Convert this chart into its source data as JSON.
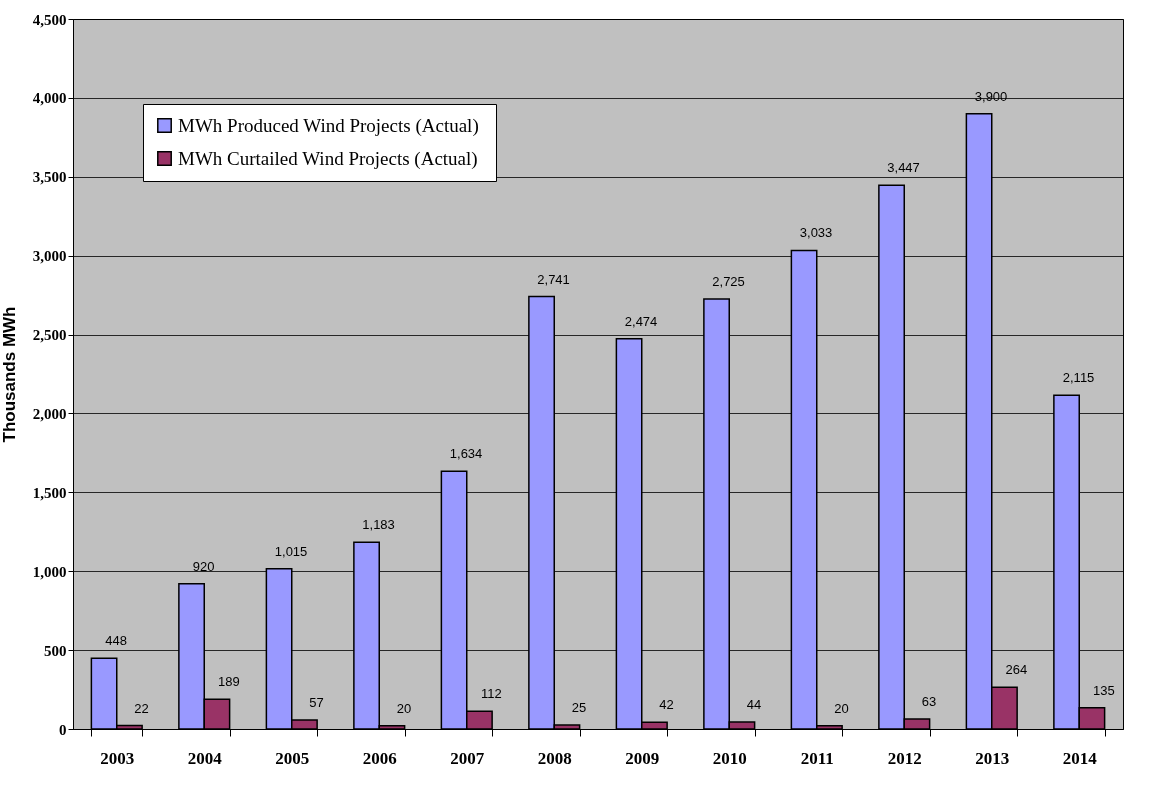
{
  "chart_data": {
    "type": "bar",
    "ylabel": "Thousands  MWh",
    "categories": [
      "2003",
      "2004",
      "2005",
      "2006",
      "2007",
      "2008",
      "2009",
      "2010",
      "2011",
      "2012",
      "2013",
      "2014"
    ],
    "series": [
      {
        "name": "MWh Produced  Wind Projects (Actual)",
        "color": "#9999ff",
        "values": [
          448,
          920,
          1015,
          1183,
          1634,
          2741,
          2474,
          2725,
          3033,
          3447,
          3900,
          2115
        ],
        "value_labels": [
          "448",
          "920",
          "1,015",
          "1,183",
          "1,634",
          "2,741",
          "2,474",
          "2,725",
          "3,033",
          "3,447",
          "3,900",
          "2,115"
        ]
      },
      {
        "name": "MWh Curtailed Wind Projects (Actual)",
        "color": "#993366",
        "values": [
          22,
          189,
          57,
          20,
          112,
          25,
          42,
          44,
          20,
          63,
          264,
          135
        ],
        "value_labels": [
          "22",
          "189",
          "57",
          "20",
          "112",
          "25",
          "42",
          "44",
          "20",
          "63",
          "264",
          "135"
        ]
      }
    ],
    "ylim": [
      0,
      4500
    ],
    "yticks": [
      0,
      {
        "value": 500,
        "label": "500"
      },
      {
        "value": 1000,
        "label": "1,000"
      },
      {
        "value": 1500,
        "label": "1,500"
      },
      {
        "value": 2000,
        "label": "2,000"
      },
      {
        "value": 2500,
        "label": "2,500"
      },
      {
        "value": 3000,
        "label": "3,000"
      },
      {
        "value": 3500,
        "label": "3,500"
      },
      {
        "value": 4000,
        "label": "4,000"
      },
      {
        "value": 4500,
        "label": "4,500"
      }
    ],
    "grid": "y",
    "legend": "top left"
  }
}
